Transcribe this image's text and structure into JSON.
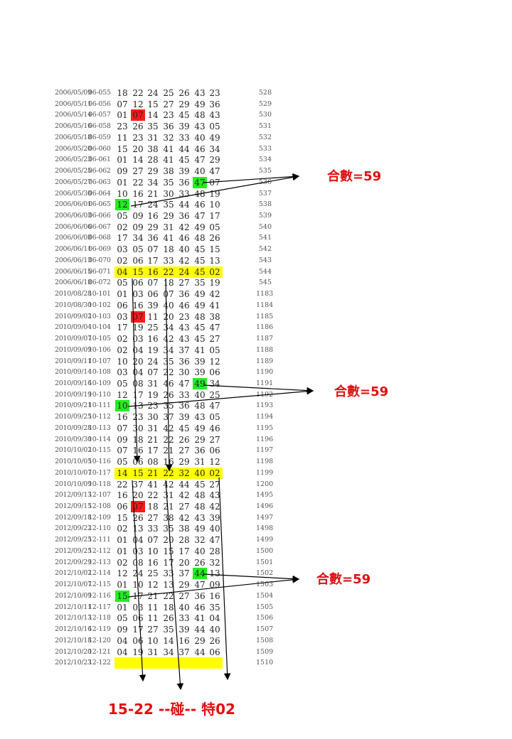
{
  "rows": [
    {
      "date": "2006/05/09",
      "period": "06-055",
      "nums": [
        "18",
        "22",
        "24",
        "25",
        "26",
        "43",
        "23"
      ],
      "seq": "528"
    },
    {
      "date": "2006/05/11",
      "period": "06-056",
      "nums": [
        "07",
        "12",
        "15",
        "27",
        "29",
        "49",
        "36"
      ],
      "seq": "529"
    },
    {
      "date": "2006/05/14",
      "period": "06-057",
      "nums": [
        "01",
        "07",
        "14",
        "23",
        "45",
        "48",
        "43"
      ],
      "seq": "530",
      "red": 1
    },
    {
      "date": "2006/05/16",
      "period": "06-058",
      "nums": [
        "23",
        "26",
        "35",
        "36",
        "39",
        "43",
        "05"
      ],
      "seq": "531"
    },
    {
      "date": "2006/05/18",
      "period": "06-059",
      "nums": [
        "11",
        "23",
        "31",
        "32",
        "33",
        "40",
        "49"
      ],
      "seq": "532"
    },
    {
      "date": "2006/05/20",
      "period": "06-060",
      "nums": [
        "15",
        "20",
        "38",
        "41",
        "44",
        "46",
        "34"
      ],
      "seq": "533"
    },
    {
      "date": "2006/05/23",
      "period": "06-061",
      "nums": [
        "01",
        "14",
        "28",
        "41",
        "45",
        "47",
        "29"
      ],
      "seq": "534"
    },
    {
      "date": "2006/05/25",
      "period": "06-062",
      "nums": [
        "09",
        "27",
        "29",
        "38",
        "39",
        "40",
        "47"
      ],
      "seq": "535"
    },
    {
      "date": "2006/05/27",
      "period": "06-063",
      "nums": [
        "01",
        "22",
        "34",
        "35",
        "36",
        "47",
        "07"
      ],
      "seq": "536",
      "green": 5
    },
    {
      "date": "2006/05/30",
      "period": "06-064",
      "nums": [
        "10",
        "16",
        "21",
        "30",
        "33",
        "48",
        "19"
      ],
      "seq": "537"
    },
    {
      "date": "2006/06/01",
      "period": "06-065",
      "nums": [
        "12",
        "17",
        "24",
        "35",
        "44",
        "46",
        "10"
      ],
      "seq": "538",
      "green": 0
    },
    {
      "date": "2006/06/03",
      "period": "06-066",
      "nums": [
        "05",
        "09",
        "16",
        "29",
        "36",
        "47",
        "17"
      ],
      "seq": "539"
    },
    {
      "date": "2006/06/06",
      "period": "06-067",
      "nums": [
        "02",
        "09",
        "29",
        "31",
        "42",
        "49",
        "05"
      ],
      "seq": "540"
    },
    {
      "date": "2006/06/08",
      "period": "06-068",
      "nums": [
        "17",
        "34",
        "36",
        "41",
        "46",
        "48",
        "26"
      ],
      "seq": "541"
    },
    {
      "date": "2006/06/11",
      "period": "06-069",
      "nums": [
        "03",
        "05",
        "07",
        "18",
        "40",
        "45",
        "15"
      ],
      "seq": "542"
    },
    {
      "date": "2006/06/13",
      "period": "06-070",
      "nums": [
        "02",
        "06",
        "17",
        "33",
        "42",
        "45",
        "13"
      ],
      "seq": "543"
    },
    {
      "date": "2006/06/15",
      "period": "06-071",
      "nums": [
        "04",
        "15",
        "16",
        "22",
        "24",
        "45",
        "02"
      ],
      "seq": "544",
      "yellow": true
    },
    {
      "date": "2006/06/18",
      "period": "06-072",
      "nums": [
        "05",
        "06",
        "07",
        "18",
        "27",
        "35",
        "19"
      ],
      "seq": "545"
    },
    {
      "date": "2010/08/28",
      "period": "10-101",
      "nums": [
        "01",
        "03",
        "06",
        "07",
        "36",
        "49",
        "42"
      ],
      "seq": "1183"
    },
    {
      "date": "2010/08/30",
      "period": "10-102",
      "nums": [
        "06",
        "16",
        "39",
        "40",
        "46",
        "49",
        "41"
      ],
      "seq": "1184"
    },
    {
      "date": "2010/09/02",
      "period": "10-103",
      "nums": [
        "03",
        "07",
        "11",
        "20",
        "23",
        "48",
        "38"
      ],
      "seq": "1185",
      "red": 1
    },
    {
      "date": "2010/09/04",
      "period": "10-104",
      "nums": [
        "17",
        "19",
        "25",
        "34",
        "43",
        "45",
        "47"
      ],
      "seq": "1186"
    },
    {
      "date": "2010/09/07",
      "period": "10-105",
      "nums": [
        "02",
        "03",
        "16",
        "42",
        "43",
        "45",
        "27"
      ],
      "seq": "1187"
    },
    {
      "date": "2010/09/09",
      "period": "10-106",
      "nums": [
        "02",
        "04",
        "19",
        "34",
        "37",
        "41",
        "05"
      ],
      "seq": "1188"
    },
    {
      "date": "2010/09/11",
      "period": "10-107",
      "nums": [
        "10",
        "20",
        "24",
        "35",
        "36",
        "39",
        "12"
      ],
      "seq": "1189"
    },
    {
      "date": "2010/09/14",
      "period": "10-108",
      "nums": [
        "03",
        "04",
        "07",
        "22",
        "30",
        "39",
        "06"
      ],
      "seq": "1190"
    },
    {
      "date": "2010/09/16",
      "period": "10-109",
      "nums": [
        "05",
        "08",
        "31",
        "46",
        "47",
        "49",
        "34"
      ],
      "seq": "1191",
      "green": 5
    },
    {
      "date": "2010/09/19",
      "period": "10-110",
      "nums": [
        "12",
        "17",
        "19",
        "26",
        "33",
        "40",
        "25"
      ],
      "seq": "1192"
    },
    {
      "date": "2010/09/21",
      "period": "10-111",
      "nums": [
        "10",
        "13",
        "23",
        "35",
        "36",
        "48",
        "47"
      ],
      "seq": "1193",
      "green": 0
    },
    {
      "date": "2010/09/25",
      "period": "10-112",
      "nums": [
        "16",
        "23",
        "30",
        "37",
        "39",
        "43",
        "05"
      ],
      "seq": "1194"
    },
    {
      "date": "2010/09/28",
      "period": "10-113",
      "nums": [
        "07",
        "30",
        "31",
        "42",
        "45",
        "49",
        "46"
      ],
      "seq": "1195"
    },
    {
      "date": "2010/09/30",
      "period": "10-114",
      "nums": [
        "09",
        "18",
        "21",
        "22",
        "26",
        "29",
        "27"
      ],
      "seq": "1196"
    },
    {
      "date": "2010/10/02",
      "period": "10-115",
      "nums": [
        "07",
        "16",
        "17",
        "21",
        "27",
        "36",
        "06"
      ],
      "seq": "1197"
    },
    {
      "date": "2010/10/05",
      "period": "10-116",
      "nums": [
        "05",
        "06",
        "08",
        "16",
        "29",
        "31",
        "12"
      ],
      "seq": "1198"
    },
    {
      "date": "2010/10/07",
      "period": "10-117",
      "nums": [
        "14",
        "15",
        "21",
        "22",
        "32",
        "40",
        "02"
      ],
      "seq": "1199",
      "yellow": true
    },
    {
      "date": "2010/10/09",
      "period": "10-118",
      "nums": [
        "22",
        "37",
        "41",
        "42",
        "44",
        "45",
        "27"
      ],
      "seq": "1200"
    },
    {
      "date": "2012/09/13",
      "period": "12-107",
      "nums": [
        "16",
        "20",
        "22",
        "31",
        "42",
        "48",
        "43"
      ],
      "seq": "1495"
    },
    {
      "date": "2012/09/15",
      "period": "12-108",
      "nums": [
        "06",
        "07",
        "18",
        "21",
        "27",
        "48",
        "42"
      ],
      "seq": "1496",
      "red": 1
    },
    {
      "date": "2012/09/18",
      "period": "12-109",
      "nums": [
        "15",
        "26",
        "27",
        "38",
        "42",
        "43",
        "39"
      ],
      "seq": "1497"
    },
    {
      "date": "2012/09/22",
      "period": "12-110",
      "nums": [
        "02",
        "13",
        "33",
        "35",
        "38",
        "49",
        "40"
      ],
      "seq": "1498"
    },
    {
      "date": "2012/09/25",
      "period": "12-111",
      "nums": [
        "01",
        "04",
        "07",
        "20",
        "28",
        "32",
        "47"
      ],
      "seq": "1499"
    },
    {
      "date": "2012/09/25",
      "period": "12-112",
      "nums": [
        "01",
        "03",
        "10",
        "15",
        "17",
        "40",
        "28"
      ],
      "seq": "1500"
    },
    {
      "date": "2012/09/29",
      "period": "12-113",
      "nums": [
        "02",
        "08",
        "16",
        "17",
        "20",
        "26",
        "32"
      ],
      "seq": "1501"
    },
    {
      "date": "2012/10/02",
      "period": "12-114",
      "nums": [
        "12",
        "24",
        "25",
        "33",
        "37",
        "44",
        "13"
      ],
      "seq": "1502",
      "green": 5
    },
    {
      "date": "2012/10/07",
      "period": "12-115",
      "nums": [
        "01",
        "10",
        "12",
        "13",
        "29",
        "47",
        "09"
      ],
      "seq": "1503"
    },
    {
      "date": "2012/10/09",
      "period": "12-116",
      "nums": [
        "15",
        "17",
        "21",
        "22",
        "27",
        "36",
        "16"
      ],
      "seq": "1504",
      "green": 0
    },
    {
      "date": "2012/10/11",
      "period": "12-117",
      "nums": [
        "01",
        "03",
        "11",
        "18",
        "40",
        "46",
        "35"
      ],
      "seq": "1505"
    },
    {
      "date": "2012/10/13",
      "period": "12-118",
      "nums": [
        "05",
        "06",
        "11",
        "26",
        "33",
        "41",
        "04"
      ],
      "seq": "1506"
    },
    {
      "date": "2012/10/16",
      "period": "12-119",
      "nums": [
        "09",
        "17",
        "27",
        "35",
        "39",
        "44",
        "40"
      ],
      "seq": "1507"
    },
    {
      "date": "2012/10/18",
      "period": "12-120",
      "nums": [
        "04",
        "06",
        "10",
        "14",
        "16",
        "29",
        "26"
      ],
      "seq": "1508"
    },
    {
      "date": "2012/10/20",
      "period": "12-121",
      "nums": [
        "04",
        "19",
        "31",
        "34",
        "37",
        "44",
        "06"
      ],
      "seq": "1509"
    },
    {
      "date": "2012/10/23",
      "period": "12-122",
      "nums": [],
      "seq": "1510",
      "yellow": true
    }
  ],
  "annotations": {
    "sum1": "合數=59",
    "sum2": "合數=59",
    "sum3": "合數=59",
    "bottom": "15-22 --碰--  特02"
  },
  "colors": {
    "red": "#ff1a1a",
    "green": "#22ee22",
    "yellow": "#ffff00",
    "annotation": "#e01010"
  }
}
